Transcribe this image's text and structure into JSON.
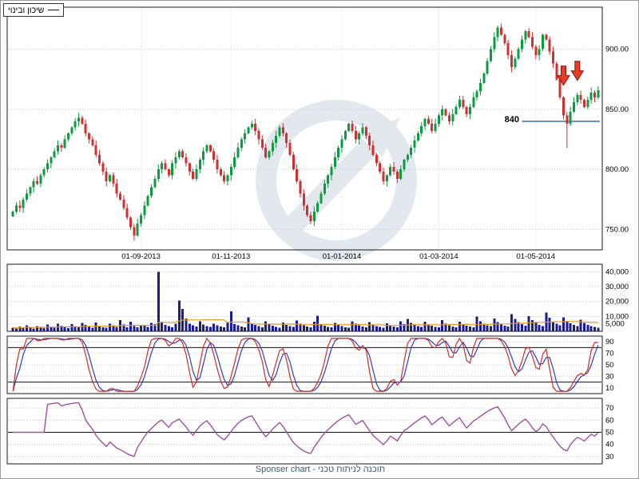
{
  "legend": {
    "series_label": "שיכון ובינוי"
  },
  "footer": {
    "caption": "Sponser chart - תוכנה לניתוח טכני"
  },
  "annotations": {
    "support_label": "840",
    "support_line": {
      "price": 840,
      "from_index": 147,
      "color": "#3a6bc4"
    },
    "down_arrows": [
      {
        "index": 159,
        "price": 886
      },
      {
        "index": 163,
        "price": 890
      }
    ],
    "arrow_color": "#ea3b23",
    "arrow_outline": "#7a150c"
  },
  "watermark": {
    "name": "sponser-logo",
    "color": "#e3e7ee"
  },
  "chart_data": [
    {
      "type": "candlestick",
      "name": "price",
      "title": "שיכון ובינוי",
      "ylim": [
        733,
        935
      ],
      "y_ticks": [
        750,
        800,
        850,
        900
      ],
      "y_tick_labels": [
        "750.00",
        "800.00",
        "850.00",
        "900.00"
      ],
      "x_tick_labels": [
        "01-09-2013",
        "01-11-2013",
        "01-01-2014",
        "01-03-2014",
        "01-05-2014"
      ],
      "x_tick_indices": [
        37,
        63,
        95,
        123,
        151
      ],
      "up_color": "#0b9b40",
      "down_color": "#d22f2f",
      "close": [
        765,
        770,
        768,
        775,
        780,
        785,
        790,
        788,
        795,
        800,
        805,
        810,
        815,
        820,
        818,
        825,
        830,
        835,
        840,
        843,
        838,
        830,
        825,
        820,
        812,
        805,
        798,
        790,
        795,
        788,
        780,
        775,
        768,
        760,
        752,
        745,
        755,
        762,
        770,
        778,
        785,
        792,
        800,
        805,
        800,
        795,
        805,
        810,
        815,
        810,
        805,
        798,
        792,
        800,
        808,
        815,
        820,
        815,
        808,
        800,
        795,
        790,
        795,
        802,
        810,
        818,
        825,
        830,
        835,
        838,
        832,
        825,
        818,
        810,
        815,
        822,
        828,
        835,
        830,
        822,
        812,
        800,
        790,
        780,
        770,
        762,
        757,
        765,
        772,
        780,
        788,
        795,
        802,
        810,
        818,
        825,
        832,
        838,
        832,
        825,
        830,
        835,
        828,
        820,
        812,
        805,
        798,
        790,
        795,
        802,
        798,
        792,
        800,
        808,
        812,
        818,
        824,
        830,
        836,
        842,
        838,
        832,
        838,
        845,
        850,
        845,
        840,
        846,
        852,
        858,
        852,
        846,
        852,
        860,
        865,
        872,
        880,
        890,
        900,
        910,
        918,
        912,
        905,
        895,
        885,
        892,
        900,
        908,
        915,
        910,
        902,
        895,
        900,
        912,
        908,
        898,
        888,
        875,
        860,
        845,
        838,
        848,
        856,
        862,
        858,
        852,
        858,
        864,
        860,
        866
      ]
    },
    {
      "type": "bar",
      "name": "volume",
      "ylim": [
        0,
        45000
      ],
      "y_ticks": [
        5000,
        10000,
        20000,
        30000,
        40000
      ],
      "y_tick_labels": [
        "5,000",
        "10,000",
        "20,000",
        "30,000",
        "40,000"
      ],
      "bar_color": "#1c1c8e",
      "ma_color": "#e09b20",
      "ma_period": 20,
      "values": [
        2500,
        1800,
        3200,
        2100,
        4000,
        2600,
        1900,
        3500,
        2800,
        2200,
        4500,
        3000,
        2400,
        5200,
        3800,
        2900,
        2200,
        4800,
        3400,
        2600,
        5500,
        4200,
        3100,
        2500,
        6000,
        3600,
        2800,
        2300,
        5000,
        3900,
        3000,
        7500,
        4500,
        2800,
        6500,
        3500,
        2600,
        4200,
        3800,
        2900,
        5500,
        4800,
        40000,
        6500,
        4200,
        3600,
        2800,
        5000,
        20500,
        15000,
        8500,
        5200,
        4000,
        3200,
        6800,
        4500,
        3600,
        2900,
        5200,
        4100,
        3300,
        2700,
        6200,
        13500,
        4800,
        3900,
        3100,
        2600,
        9500,
        5400,
        4200,
        3400,
        2800,
        6600,
        4700,
        3700,
        3000,
        2500,
        5800,
        4400,
        3500,
        2900,
        7200,
        5100,
        4000,
        3200,
        2700,
        6400,
        10500,
        4600,
        3700,
        3000,
        2600,
        5600,
        4300,
        3500,
        2800,
        2400,
        6800,
        5000,
        3900,
        3100,
        2700,
        6100,
        4500,
        3600,
        2900,
        2500,
        5300,
        4100,
        3300,
        2800,
        6700,
        4800,
        8200,
        5500,
        4200,
        3400,
        2900,
        6300,
        4600,
        3700,
        3000,
        2600,
        7400,
        5200,
        4000,
        3200,
        2800,
        6500,
        4700,
        3800,
        3100,
        2700,
        9800,
        6800,
        5200,
        4100,
        3400,
        8500,
        6200,
        4800,
        3800,
        3100,
        11500,
        8200,
        6100,
        4700,
        3700,
        10200,
        7400,
        5500,
        4300,
        3500,
        12500,
        9000,
        6600,
        5000,
        3900,
        9500,
        7000,
        5300,
        4200,
        3400,
        7800,
        5700,
        4400,
        3600,
        2900,
        2400
      ]
    },
    {
      "type": "line",
      "name": "stochastic",
      "ylim": [
        0,
        100
      ],
      "y_ticks": [
        10,
        30,
        50,
        70,
        90
      ],
      "ref_lines": [
        20,
        80
      ],
      "period": 10,
      "smooth": 3,
      "derived_from": "price.close",
      "series": [
        {
          "name": "K",
          "color": "#d42a2a"
        },
        {
          "name": "D",
          "color": "#2b3fbb"
        }
      ]
    },
    {
      "type": "line",
      "name": "rsi",
      "ylim": [
        24,
        78
      ],
      "y_ticks": [
        30,
        40,
        50,
        60,
        70
      ],
      "ref_lines": [
        50
      ],
      "period": 9,
      "derived_from": "price.close",
      "series": [
        {
          "name": "RSI",
          "color": "#a14fa1"
        }
      ]
    }
  ]
}
